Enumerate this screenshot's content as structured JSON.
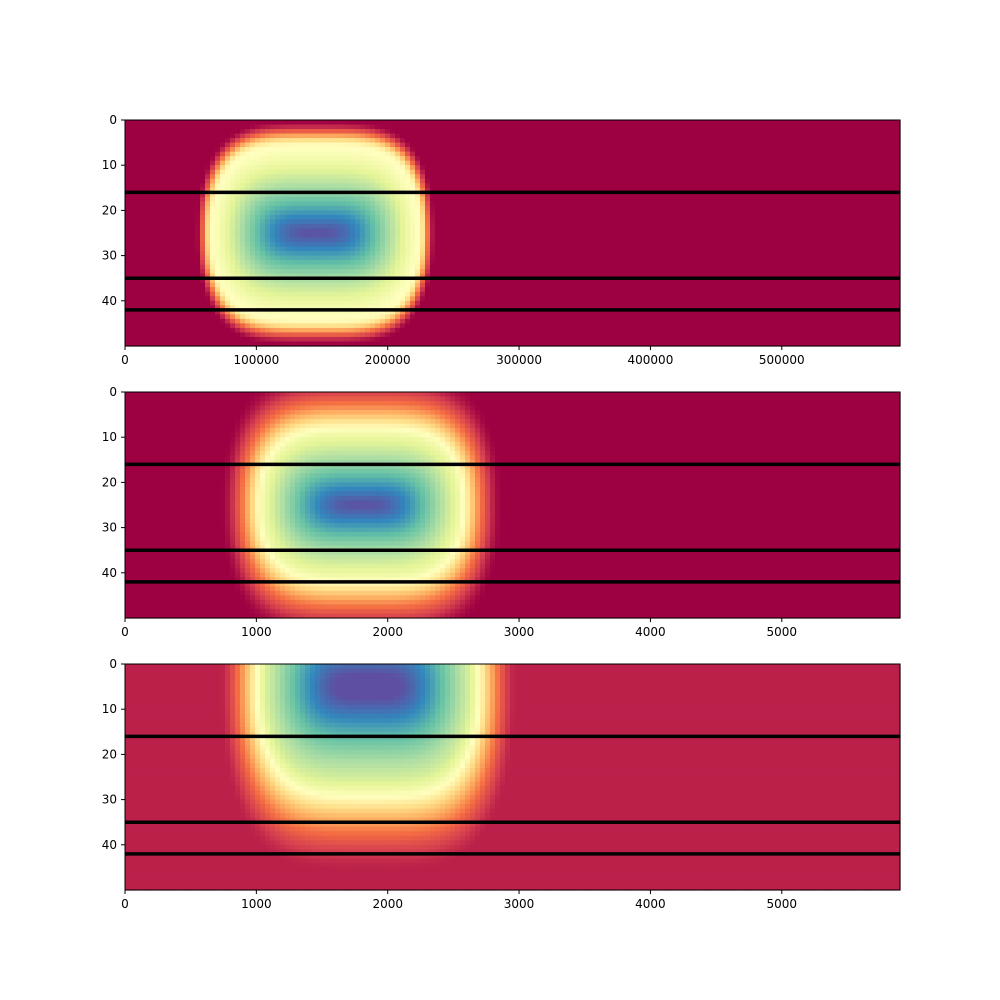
{
  "chart_data": [
    {
      "type": "heatmap",
      "colormap": "Spectral",
      "rows": 50,
      "xlim": [
        0,
        590000
      ],
      "ylim": [
        50,
        0
      ],
      "x_ticks": [
        0,
        100000,
        200000,
        300000,
        400000,
        500000
      ],
      "x_tick_labels": [
        "0",
        "100000",
        "200000",
        "300000",
        "400000",
        "500000"
      ],
      "y_ticks": [
        0,
        10,
        20,
        30,
        40
      ],
      "y_tick_labels": [
        "0",
        "10",
        "20",
        "30",
        "40"
      ],
      "hlines": [
        16,
        35,
        42
      ],
      "hline_color": "#000000",
      "field": {
        "center_x": 145000,
        "half_width": 85000,
        "center_y": 25,
        "half_height_rows": 22,
        "edge_blur": 0.08,
        "rim_sharpness": 0.1,
        "background_value": 0.0
      }
    },
    {
      "type": "heatmap",
      "colormap": "Spectral",
      "rows": 50,
      "xlim": [
        0,
        5900
      ],
      "ylim": [
        50,
        0
      ],
      "x_ticks": [
        0,
        1000,
        2000,
        3000,
        4000,
        5000
      ],
      "x_tick_labels": [
        "0",
        "1000",
        "2000",
        "3000",
        "4000",
        "5000"
      ],
      "y_ticks": [
        0,
        10,
        20,
        30,
        40
      ],
      "y_tick_labels": [
        "0",
        "10",
        "20",
        "30",
        "40"
      ],
      "hlines": [
        16,
        35,
        42
      ],
      "hline_color": "#000000",
      "field": {
        "center_x": 1800,
        "half_width": 900,
        "center_y": 25,
        "half_height_rows": 22,
        "edge_blur": 0.22,
        "rim_sharpness": 0.14,
        "background_value": 0.0
      }
    },
    {
      "type": "heatmap",
      "colormap": "Spectral",
      "rows": 50,
      "xlim": [
        0,
        5900
      ],
      "ylim": [
        50,
        0
      ],
      "x_ticks": [
        0,
        1000,
        2000,
        3000,
        4000,
        5000
      ],
      "x_tick_labels": [
        "0",
        "1000",
        "2000",
        "3000",
        "4000",
        "5000"
      ],
      "y_ticks": [
        0,
        10,
        20,
        30,
        40
      ],
      "y_tick_labels": [
        "0",
        "10",
        "20",
        "30",
        "40"
      ],
      "hlines": [
        16,
        35,
        42
      ],
      "hline_color": "#000000",
      "field": {
        "center_x": 1850,
        "half_width": 950,
        "center_y": 5,
        "half_height_rows": 30,
        "edge_blur": 0.22,
        "rim_sharpness": 0.14,
        "background_value": 0.05
      }
    }
  ]
}
